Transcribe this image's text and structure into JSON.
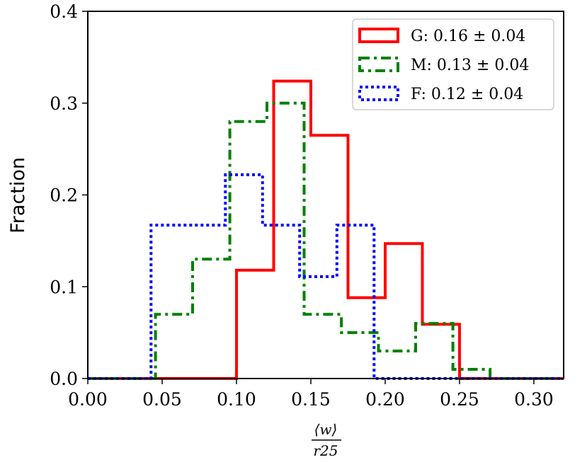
{
  "chart_data": {
    "type": "histogram",
    "title": "",
    "xlabel": {
      "numerator": "⟨w⟩",
      "denominator": "r25"
    },
    "ylabel": "Fraction",
    "xlim": [
      0.0,
      0.32
    ],
    "ylim": [
      0.0,
      0.4
    ],
    "xticks": [
      "0.00",
      "0.05",
      "0.10",
      "0.15",
      "0.20",
      "0.25",
      "0.30"
    ],
    "yticks": [
      "0.0",
      "0.1",
      "0.2",
      "0.3",
      "0.4"
    ],
    "grid": false,
    "legend_position": "top-right",
    "series": [
      {
        "name": "G: 0.16 ± 0.04",
        "color": "#ff0000",
        "linestyle": "solid",
        "bin_edges": [
          0.0,
          0.025,
          0.05,
          0.075,
          0.1,
          0.125,
          0.15,
          0.175,
          0.2,
          0.225,
          0.25,
          0.275,
          0.3,
          0.32
        ],
        "values": [
          0.0,
          0.0,
          0.0,
          0.0,
          0.118,
          0.324,
          0.265,
          0.088,
          0.147,
          0.059,
          0.0,
          0.0,
          0.0
        ]
      },
      {
        "name": "M: 0.13 ± 0.04",
        "color": "#008000",
        "linestyle": "dashdot",
        "bin_edges": [
          0.0,
          0.0455,
          0.0705,
          0.0955,
          0.1205,
          0.1455,
          0.1705,
          0.1955,
          0.2205,
          0.2455,
          0.2705,
          0.32
        ],
        "values": [
          0.0,
          0.07,
          0.13,
          0.28,
          0.3,
          0.07,
          0.05,
          0.03,
          0.06,
          0.01,
          0.0
        ]
      },
      {
        "name": "F: 0.12 ± 0.04",
        "color": "#0000ff",
        "linestyle": "dotted",
        "bin_edges": [
          0.0,
          0.0425,
          0.0925,
          0.1175,
          0.1425,
          0.1675,
          0.1925,
          0.32
        ],
        "values": [
          0.0,
          0.167,
          0.222,
          0.167,
          0.111,
          0.167,
          0.0
        ]
      }
    ]
  }
}
